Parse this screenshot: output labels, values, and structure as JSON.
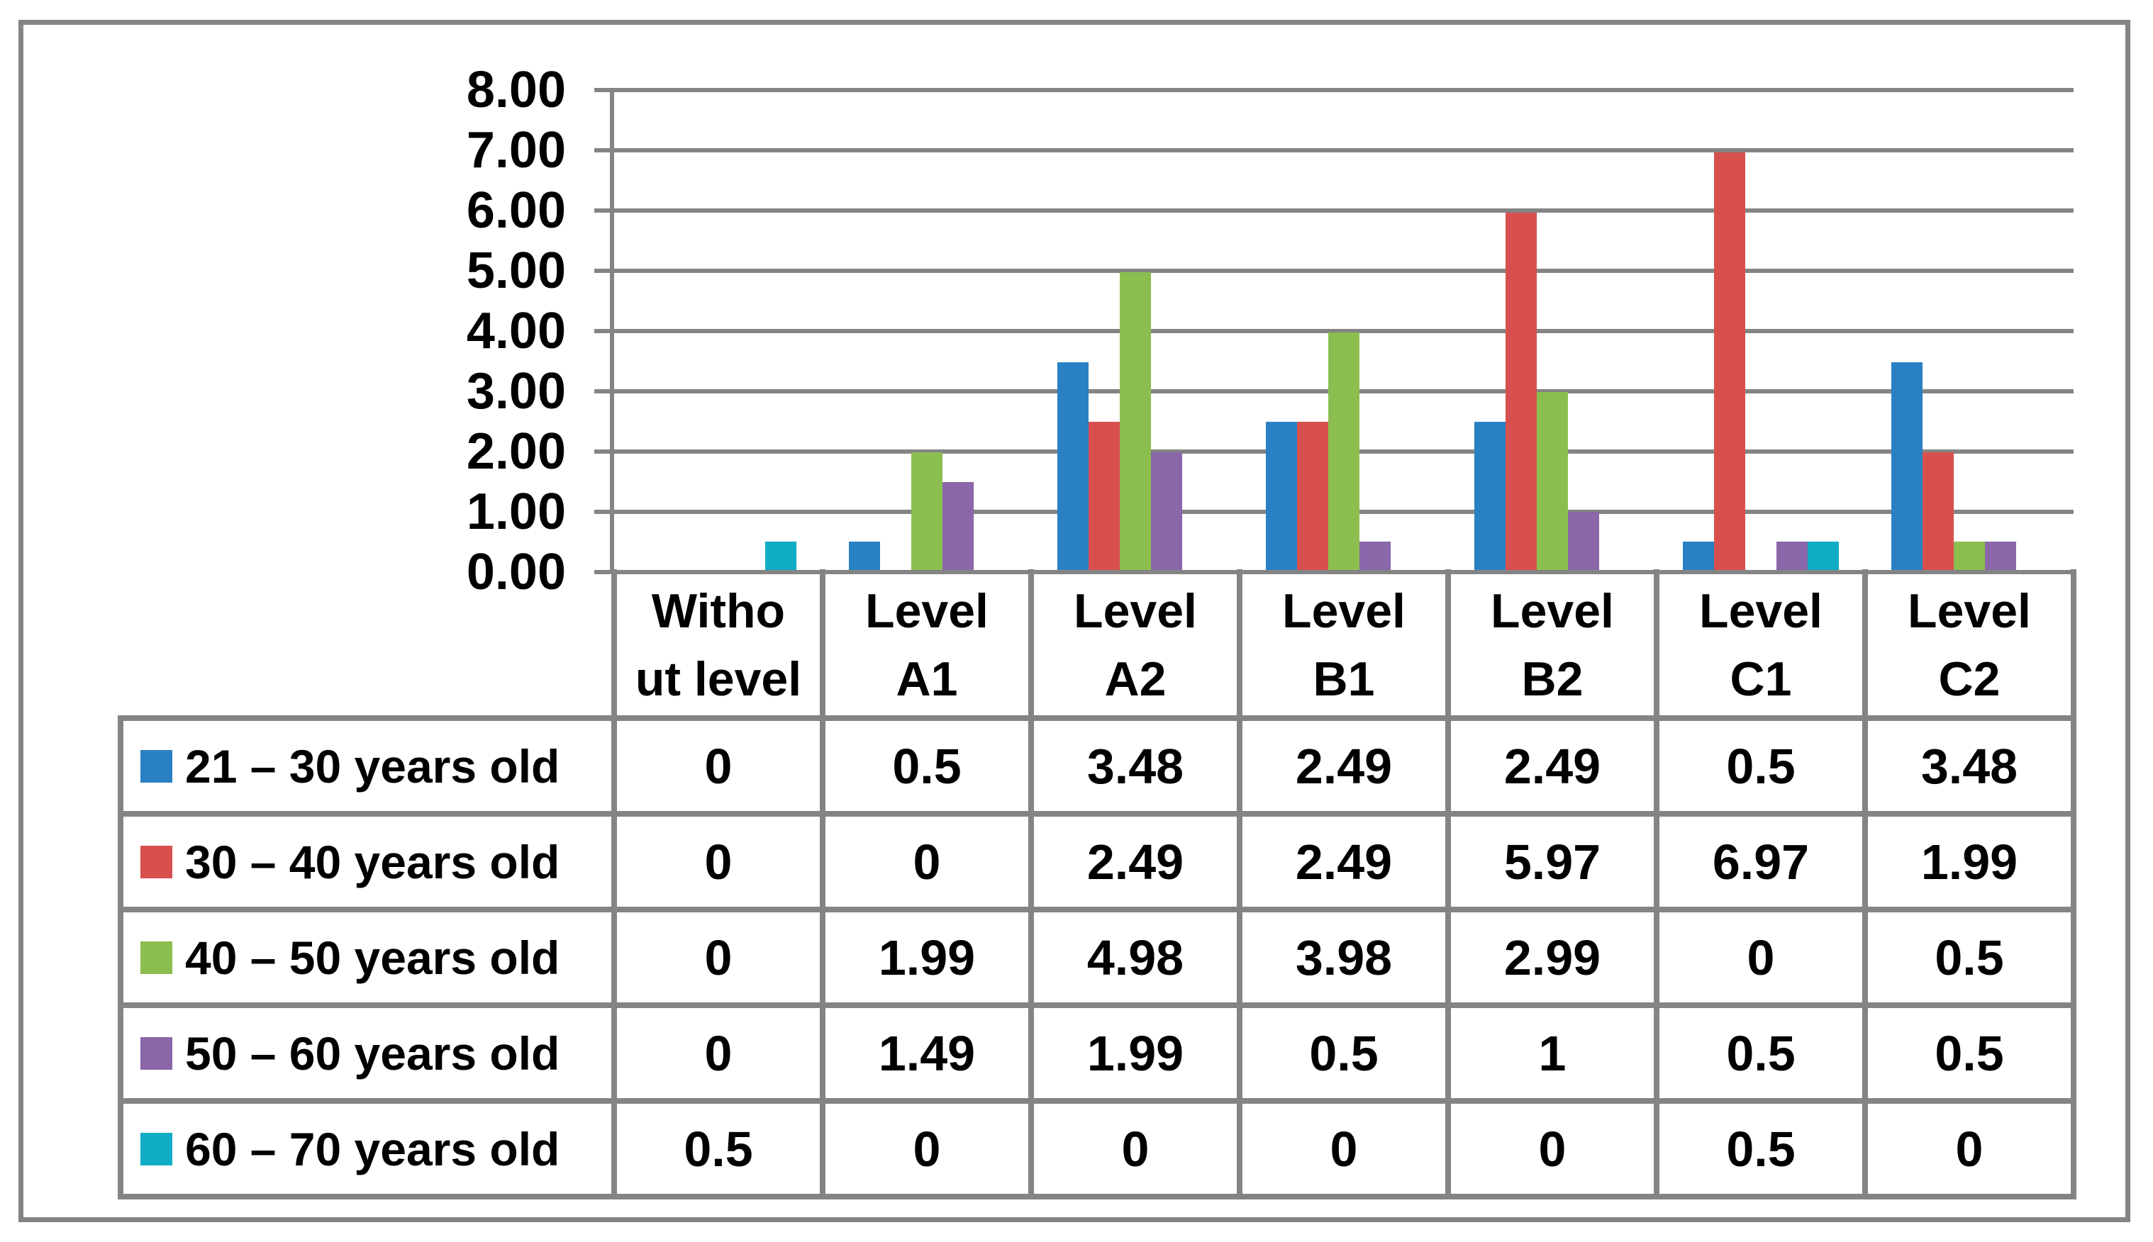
{
  "chart_data": {
    "type": "bar",
    "title": "",
    "categories": [
      "Without level",
      "Level A1",
      "Level A2",
      "Level B1",
      "Level B2",
      "Level C1",
      "Level C2"
    ],
    "series": [
      {
        "name": "21 – 30 years old",
        "color": "#2981C3",
        "values": [
          0,
          0.5,
          3.48,
          2.49,
          2.49,
          0.5,
          3.48
        ]
      },
      {
        "name": "30 – 40 years old",
        "color": "#D8504D",
        "values": [
          0,
          0,
          2.49,
          2.49,
          5.97,
          6.97,
          1.99
        ]
      },
      {
        "name": "40 – 50 years old",
        "color": "#8CBE4F",
        "values": [
          0,
          1.99,
          4.98,
          3.98,
          2.99,
          0,
          0.5
        ]
      },
      {
        "name": "50 – 60 years old",
        "color": "#8967A9",
        "values": [
          0,
          1.49,
          1.99,
          0.5,
          1,
          0.5,
          0.5
        ]
      },
      {
        "name": "60 – 70 years old",
        "color": "#10ADC4",
        "values": [
          0.5,
          0,
          0,
          0,
          0,
          0.5,
          0
        ]
      }
    ],
    "y_ticks": [
      "8.00",
      "7.00",
      "6.00",
      "5.00",
      "4.00",
      "3.00",
      "2.00",
      "1.00",
      "0.00"
    ],
    "ylim": [
      0,
      8
    ],
    "grid": true,
    "legend_position": "table-left",
    "gridline_color": "#848484"
  },
  "table": {
    "headers": [
      "Witho\nut level",
      "Level\nA1",
      "Level\nA2",
      "Level\nB1",
      "Level\nB2",
      "Level\nC1",
      "Level\nC2"
    ],
    "rows": [
      {
        "label": "21 – 30 years old",
        "cells": [
          "0",
          "0.5",
          "3.48",
          "2.49",
          "2.49",
          "0.5",
          "3.48"
        ]
      },
      {
        "label": "30 – 40 years old",
        "cells": [
          "0",
          "0",
          "2.49",
          "2.49",
          "5.97",
          "6.97",
          "1.99"
        ]
      },
      {
        "label": "40 – 50 years old",
        "cells": [
          "0",
          "1.99",
          "4.98",
          "3.98",
          "2.99",
          "0",
          "0.5"
        ]
      },
      {
        "label": "50 – 60 years old",
        "cells": [
          "0",
          "1.49",
          "1.99",
          "0.5",
          "1",
          "0.5",
          "0.5"
        ]
      },
      {
        "label": "60 – 70 years old",
        "cells": [
          "0.5",
          "0",
          "0",
          "0",
          "0",
          "0.5",
          "0"
        ]
      }
    ]
  }
}
